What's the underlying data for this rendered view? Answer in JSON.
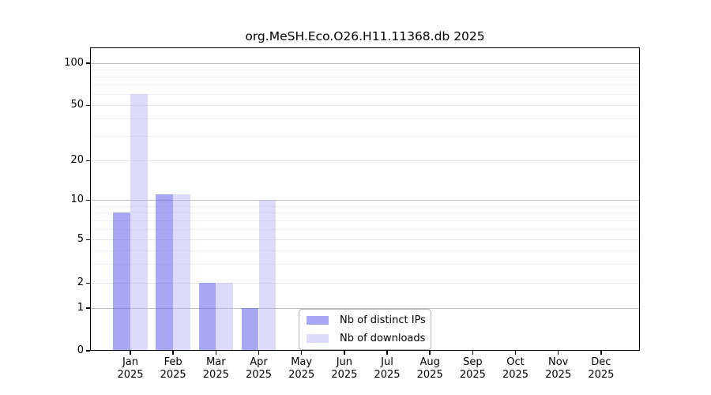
{
  "chart_data": {
    "type": "bar",
    "title": "org.MeSH.Eco.O26.H11.11368.db 2025",
    "x": {
      "months": [
        "Jan",
        "Feb",
        "Mar",
        "Apr",
        "May",
        "Jun",
        "Jul",
        "Aug",
        "Sep",
        "Oct",
        "Nov",
        "Dec"
      ],
      "year": "2025"
    },
    "series": [
      {
        "id": "distinct-ips",
        "name": "Nb of distinct IPs",
        "color": "rgba(98,98,235,0.56)",
        "color_over_white_hex": "#a7a7f4",
        "values": [
          8,
          11,
          2,
          1,
          0,
          0,
          0,
          0,
          0,
          0,
          0,
          0
        ]
      },
      {
        "id": "downloads",
        "name": "Nb of downloads",
        "color": "rgba(186,186,246,0.5)",
        "color_over_white_hex": "#dcdcfa",
        "values": [
          60,
          11,
          2,
          10,
          0,
          0,
          0,
          0,
          0,
          0,
          0,
          0
        ]
      }
    ],
    "y_axis": {
      "scale": "symlog",
      "major_ticks": [
        0,
        1,
        2,
        5,
        10,
        20,
        50,
        100
      ],
      "minor_ticks": [
        3,
        4,
        6,
        7,
        8,
        9,
        30,
        40,
        60,
        70,
        80,
        90
      ],
      "emphasized_gridlines": [
        1,
        10,
        100
      ],
      "ylim": [
        0,
        130
      ]
    },
    "grid": true,
    "legend_position": "inside-bottom-center",
    "colors": {
      "grid_minor": "#f2f2f2",
      "grid_major": "#e6e6e6",
      "grid_emphasis": "#bdbdbd",
      "axis": "#000000",
      "legend_border": "#b9b9b9"
    }
  }
}
